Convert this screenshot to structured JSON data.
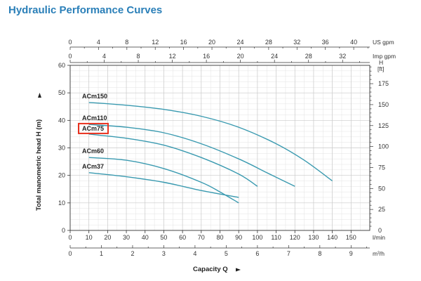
{
  "page": {
    "title": "Hydraulic Performance Curves"
  },
  "chart_data": {
    "type": "line",
    "title": "Hydraulic Performance Curves",
    "xlabel": "Capacity Q",
    "ylabel": "Total manometric head H (m)",
    "ylabel_right_unit": "H [ft]",
    "grid": true,
    "legend": "curve labels placed directly on the chart, left side",
    "highlighted_series": "ACm75",
    "highlight_color": "#e8311f",
    "curve_color": "#3a9ab0",
    "xlim_lmin": [
      0,
      160
    ],
    "ylim_m": [
      0,
      60
    ],
    "axes": {
      "x_lmin": {
        "unit": "l/min",
        "ticks": [
          "0",
          "10",
          "20",
          "30",
          "40",
          "50",
          "60",
          "70",
          "80",
          "90",
          "100",
          "110",
          "120",
          "130",
          "140",
          "150"
        ]
      },
      "x_m3h": {
        "unit": "m³/h",
        "ticks": [
          "0",
          "1",
          "2",
          "3",
          "4",
          "5",
          "6",
          "7",
          "8",
          "9"
        ]
      },
      "x_usgpm": {
        "unit": "US gpm",
        "ticks": [
          "0",
          "4",
          "8",
          "12",
          "16",
          "20",
          "24",
          "28",
          "32",
          "36",
          "40"
        ]
      },
      "x_impgpm": {
        "unit": "Imp gpm",
        "ticks": [
          "0",
          "4",
          "8",
          "12",
          "16",
          "20",
          "24",
          "28",
          "32"
        ]
      },
      "y_m": {
        "unit": "",
        "ticks": [
          "0",
          "10",
          "20",
          "30",
          "40",
          "50",
          "60"
        ]
      },
      "y_ft": {
        "unit": "H [ft]",
        "ticks": [
          "0",
          "25",
          "50",
          "75",
          "100",
          "125",
          "150",
          "175"
        ]
      }
    },
    "series": [
      {
        "name": "ACm150",
        "x": [
          10,
          30,
          50,
          70,
          90,
          110,
          125,
          140
        ],
        "y": [
          46.5,
          45.5,
          44,
          41.5,
          37.5,
          31.5,
          25.5,
          18
        ]
      },
      {
        "name": "ACm110",
        "x": [
          10,
          30,
          50,
          70,
          90,
          105,
          120
        ],
        "y": [
          38.5,
          37.5,
          35.5,
          31.5,
          26,
          21,
          16
        ]
      },
      {
        "name": "ACm75",
        "x": [
          10,
          30,
          50,
          70,
          90,
          100
        ],
        "y": [
          35,
          33.5,
          31,
          26.5,
          20.5,
          16
        ]
      },
      {
        "name": "ACm60",
        "x": [
          10,
          30,
          50,
          70,
          80,
          90
        ],
        "y": [
          26.5,
          25.5,
          22.5,
          17.5,
          14,
          10
        ]
      },
      {
        "name": "ACm37",
        "x": [
          10,
          30,
          50,
          70,
          90
        ],
        "y": [
          21,
          19.5,
          17.5,
          14.5,
          12
        ]
      }
    ]
  }
}
